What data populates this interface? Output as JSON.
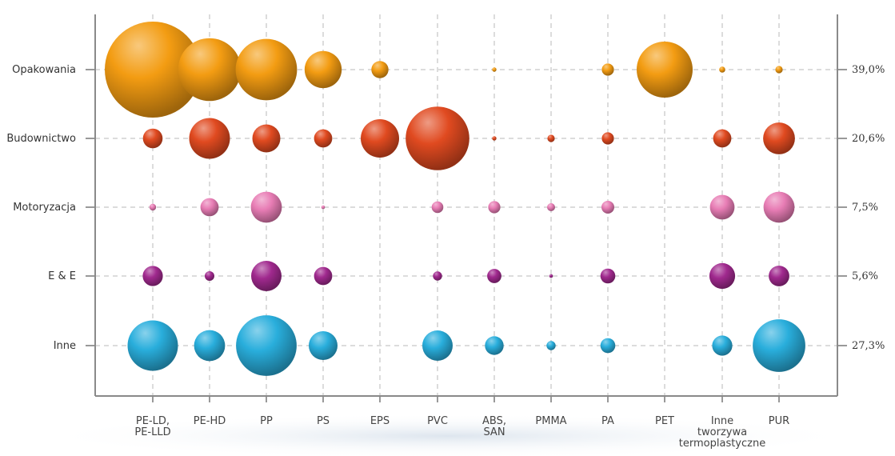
{
  "chart_data": {
    "type": "bubble",
    "title": "",
    "categories": [
      "PE-LD,\nPE-LLD",
      "PE-HD",
      "PP",
      "PS",
      "EPS",
      "PVC",
      "ABS,\nSAN",
      "PMMA",
      "PA",
      "PET",
      "Inne\ntworzywa\ntermoplastyczne",
      "PUR"
    ],
    "sectors": [
      "Opakowania",
      "Budownictwo",
      "Motoryzacja",
      "E & E",
      "Inne"
    ],
    "sector_shares": [
      "39,0%",
      "20,6%",
      "7,5%",
      "5,6%",
      "27,3%"
    ],
    "legend": "none",
    "grid": true,
    "series": [
      {
        "name": "Opakowania",
        "color": "#F39C12",
        "values": [
          100,
          43,
          41,
          15,
          3.2,
          0,
          0.2,
          0,
          1.6,
          34,
          0.4,
          0.6
        ]
      },
      {
        "name": "Budownictwo",
        "color": "#E04A20",
        "values": [
          4.2,
          18,
          8.5,
          3.6,
          16,
          44,
          0.2,
          0.6,
          1.6,
          0,
          3.6,
          11
        ]
      },
      {
        "name": "Motoryzacja",
        "color": "#E87DB5",
        "values": [
          0.5,
          3.6,
          10.5,
          0.15,
          0,
          1.5,
          1.6,
          0.7,
          1.8,
          0,
          6.6,
          10.5
        ]
      },
      {
        "name": "E & E",
        "color": "#A0298E",
        "values": [
          4.4,
          1,
          10,
          3.6,
          0,
          0.9,
          2.2,
          0.15,
          2.4,
          0,
          7.2,
          4.6
        ]
      },
      {
        "name": "Inne",
        "color": "#29AEDC",
        "values": [
          27.5,
          10.5,
          40,
          9,
          0,
          10,
          3.8,
          0.9,
          2.4,
          0,
          4.4,
          30
        ]
      }
    ]
  }
}
